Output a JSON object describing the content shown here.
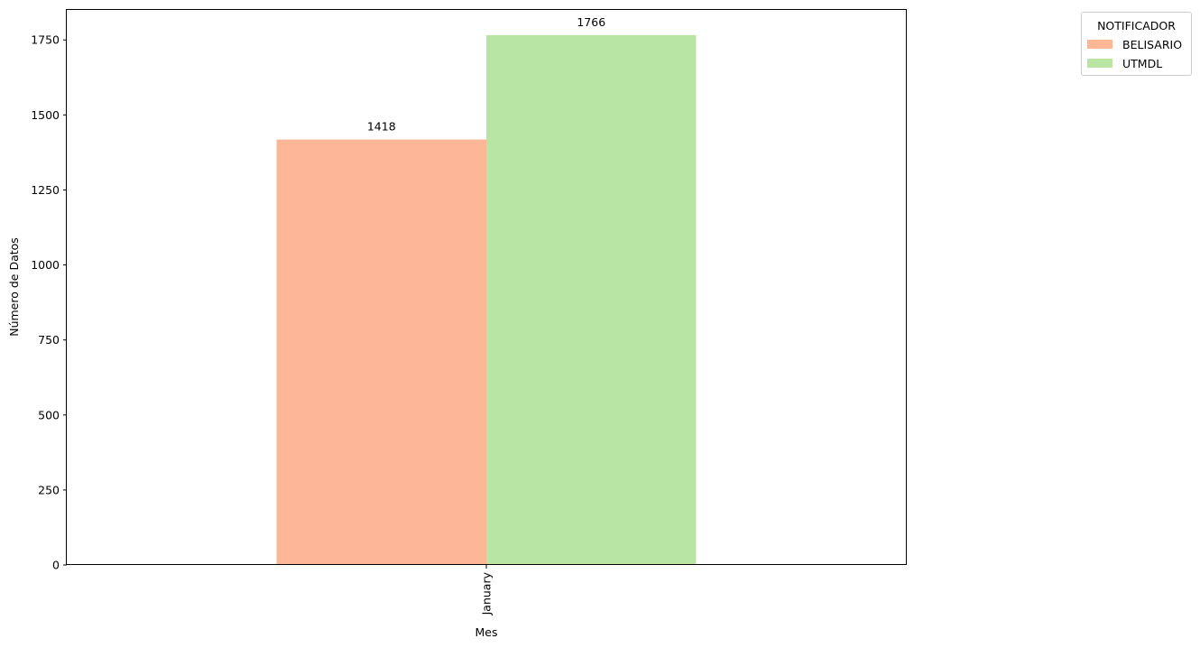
{
  "chart_data": {
    "type": "bar",
    "categories": [
      "January"
    ],
    "series": [
      {
        "name": "BELISARIO",
        "values": [
          1418
        ],
        "color": "#fdb797"
      },
      {
        "name": "UTMDL",
        "values": [
          1766
        ],
        "color": "#b9e5a4"
      }
    ],
    "xlabel": "Mes",
    "ylabel": "Número de Datos",
    "ylim": [
      0,
      1853
    ],
    "yticks": [
      0,
      250,
      500,
      750,
      1000,
      1250,
      1500,
      1750
    ],
    "xtick_rotation": "vertical",
    "grid": false,
    "legend": {
      "title": "NOTIFICADOR",
      "placement": "outside top-right"
    }
  }
}
